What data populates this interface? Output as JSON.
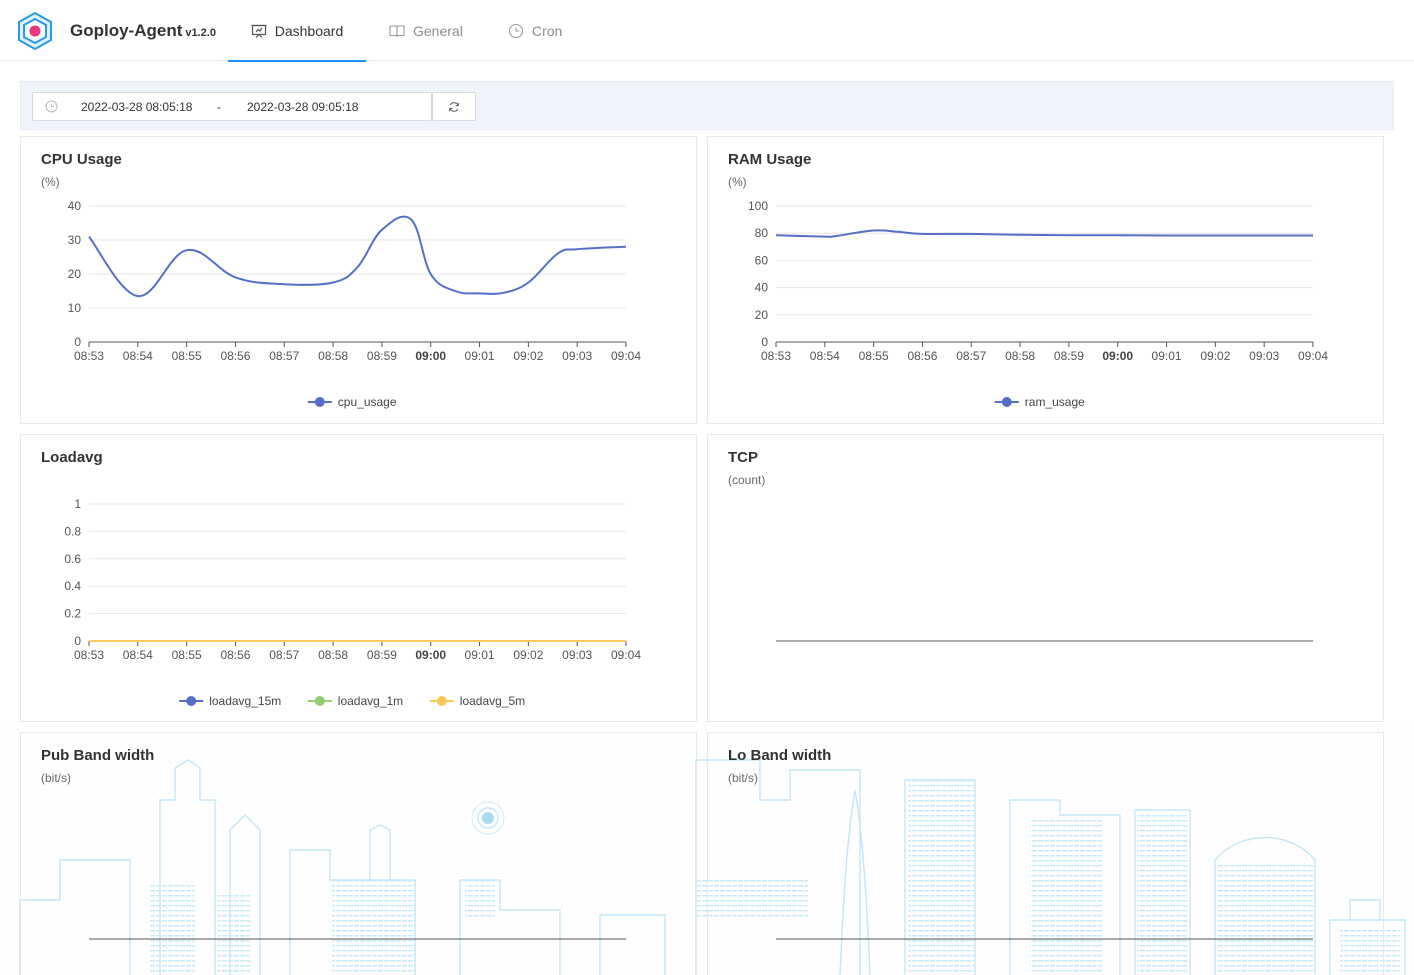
{
  "app": {
    "name": "Goploy-Agent",
    "version": "v1.2.0"
  },
  "tabs": [
    {
      "label": "Dashboard",
      "icon": "presentation-icon",
      "active": true
    },
    {
      "label": "General",
      "icon": "book-icon",
      "active": false
    },
    {
      "label": "Cron",
      "icon": "clock-icon",
      "active": false
    }
  ],
  "date_range": {
    "start": "2022-03-28 08:05:18",
    "separator": "-",
    "end": "2022-03-28 09:05:18"
  },
  "colors": {
    "accent": "#1890ff",
    "series_blue": "#5470c6",
    "series_green": "#91cc75",
    "series_yellow": "#fac858",
    "skyline": "#bfe3f5"
  },
  "chart_data": [
    {
      "id": "cpu",
      "type": "line",
      "title": "CPU Usage",
      "ylabel": "(%)",
      "x": [
        "08:53",
        "08:54",
        "08:55",
        "08:56",
        "08:57",
        "08:58",
        "08:59",
        "09:00",
        "09:01",
        "09:02",
        "09:03",
        "09:04"
      ],
      "x_bold": "09:00",
      "yticks": [
        0,
        10,
        20,
        30,
        40
      ],
      "ylim": [
        0,
        40
      ],
      "series": [
        {
          "name": "cpu_usage",
          "color": "#5470c6",
          "x": [
            0,
            1,
            2,
            3,
            4,
            5,
            5.5,
            6,
            6.6,
            7,
            7.5,
            8,
            8.5,
            9,
            9.6,
            10,
            11
          ],
          "values": [
            31,
            13.5,
            27,
            19,
            17,
            17.5,
            22,
            33,
            36,
            20,
            15,
            14.3,
            14.5,
            17.5,
            26,
            27.3,
            28
          ]
        }
      ]
    },
    {
      "id": "ram",
      "type": "line",
      "title": "RAM Usage",
      "ylabel": "(%)",
      "x": [
        "08:53",
        "08:54",
        "08:55",
        "08:56",
        "08:57",
        "08:58",
        "08:59",
        "09:00",
        "09:01",
        "09:02",
        "09:03",
        "09:04"
      ],
      "x_bold": "09:00",
      "yticks": [
        0,
        20,
        40,
        60,
        80,
        100
      ],
      "ylim": [
        0,
        100
      ],
      "series": [
        {
          "name": "ram_usage",
          "color": "#5470c6",
          "x": [
            0,
            1,
            1.2,
            2,
            2.5,
            3,
            4,
            5,
            6,
            7,
            8,
            9,
            10,
            11
          ],
          "values": [
            78.5,
            77.5,
            77.8,
            82,
            81,
            79.5,
            79.5,
            78.8,
            78.5,
            78.5,
            78.3,
            78.3,
            78.3,
            78.3
          ]
        }
      ]
    },
    {
      "id": "loadavg",
      "type": "line",
      "title": "Loadavg",
      "ylabel": "",
      "x": [
        "08:53",
        "08:54",
        "08:55",
        "08:56",
        "08:57",
        "08:58",
        "08:59",
        "09:00",
        "09:01",
        "09:02",
        "09:03",
        "09:04"
      ],
      "x_bold": "09:00",
      "yticks": [
        0,
        0.2,
        0.4,
        0.6,
        0.8,
        1
      ],
      "ylim": [
        0,
        1
      ],
      "series": [
        {
          "name": "loadavg_15m",
          "color": "#5470c6",
          "x": [
            0,
            11
          ],
          "values": [
            0,
            0
          ]
        },
        {
          "name": "loadavg_1m",
          "color": "#91cc75",
          "x": [
            0,
            11
          ],
          "values": [
            0,
            0
          ]
        },
        {
          "name": "loadavg_5m",
          "color": "#fac858",
          "x": [
            0,
            11
          ],
          "values": [
            0,
            0
          ]
        }
      ]
    },
    {
      "id": "tcp",
      "type": "line",
      "title": "TCP",
      "ylabel": "(count)",
      "series": []
    },
    {
      "id": "pub",
      "type": "line",
      "title": "Pub Band width",
      "ylabel": "(bit/s)",
      "series": []
    },
    {
      "id": "lo",
      "type": "line",
      "title": "Lo Band width",
      "ylabel": "(bit/s)",
      "series": []
    }
  ]
}
